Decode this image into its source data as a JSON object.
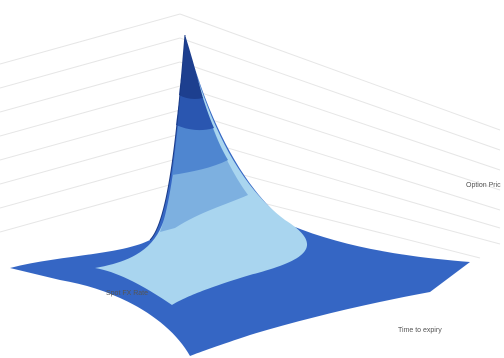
{
  "chart_data": {
    "type": "surface",
    "x_label": "Spot FX Rate",
    "y_label": "Time to expiry",
    "z_label": "Option Pric"
  }
}
